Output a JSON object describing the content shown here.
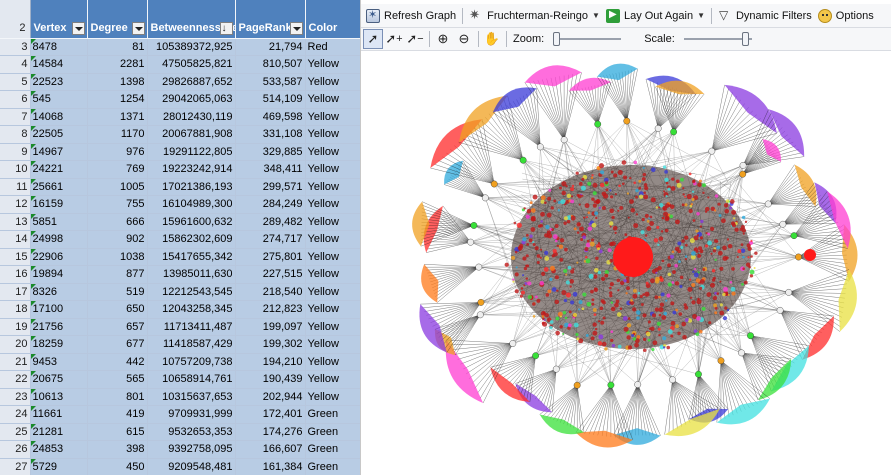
{
  "sheet": {
    "header_row_number": "2",
    "columns": [
      "Vertex",
      "Degree",
      "Betweenness Centrality",
      "PageRank",
      "Color"
    ],
    "rows": [
      {
        "row": "3",
        "vertex": "8478",
        "degree": "81",
        "betweenness": "105389372,925",
        "pagerank": "21,794",
        "color": "Red"
      },
      {
        "row": "4",
        "vertex": "14584",
        "degree": "2281",
        "betweenness": "47505825,821",
        "pagerank": "810,507",
        "color": "Yellow"
      },
      {
        "row": "5",
        "vertex": "22523",
        "degree": "1398",
        "betweenness": "29826887,652",
        "pagerank": "533,587",
        "color": "Yellow"
      },
      {
        "row": "6",
        "vertex": "545",
        "degree": "1254",
        "betweenness": "29042065,063",
        "pagerank": "514,109",
        "color": "Yellow"
      },
      {
        "row": "7",
        "vertex": "14068",
        "degree": "1371",
        "betweenness": "28012430,119",
        "pagerank": "469,598",
        "color": "Yellow"
      },
      {
        "row": "8",
        "vertex": "22505",
        "degree": "1170",
        "betweenness": "20067881,908",
        "pagerank": "331,108",
        "color": "Yellow"
      },
      {
        "row": "9",
        "vertex": "14967",
        "degree": "976",
        "betweenness": "19291122,805",
        "pagerank": "329,885",
        "color": "Yellow"
      },
      {
        "row": "10",
        "vertex": "24221",
        "degree": "769",
        "betweenness": "19223242,914",
        "pagerank": "348,411",
        "color": "Yellow"
      },
      {
        "row": "11",
        "vertex": "25661",
        "degree": "1005",
        "betweenness": "17021386,193",
        "pagerank": "299,571",
        "color": "Yellow"
      },
      {
        "row": "12",
        "vertex": "16159",
        "degree": "755",
        "betweenness": "16104989,300",
        "pagerank": "284,249",
        "color": "Yellow"
      },
      {
        "row": "13",
        "vertex": "5851",
        "degree": "666",
        "betweenness": "15961600,632",
        "pagerank": "289,482",
        "color": "Yellow"
      },
      {
        "row": "14",
        "vertex": "24998",
        "degree": "902",
        "betweenness": "15862302,609",
        "pagerank": "274,717",
        "color": "Yellow"
      },
      {
        "row": "15",
        "vertex": "22906",
        "degree": "1038",
        "betweenness": "15417655,342",
        "pagerank": "275,801",
        "color": "Yellow"
      },
      {
        "row": "16",
        "vertex": "19894",
        "degree": "877",
        "betweenness": "13985011,630",
        "pagerank": "227,515",
        "color": "Yellow"
      },
      {
        "row": "17",
        "vertex": "8326",
        "degree": "519",
        "betweenness": "12212543,545",
        "pagerank": "218,540",
        "color": "Yellow"
      },
      {
        "row": "18",
        "vertex": "17100",
        "degree": "650",
        "betweenness": "12043258,345",
        "pagerank": "212,823",
        "color": "Yellow"
      },
      {
        "row": "19",
        "vertex": "21756",
        "degree": "657",
        "betweenness": "11713411,487",
        "pagerank": "199,097",
        "color": "Yellow"
      },
      {
        "row": "20",
        "vertex": "18259",
        "degree": "677",
        "betweenness": "11418587,429",
        "pagerank": "199,302",
        "color": "Yellow"
      },
      {
        "row": "21",
        "vertex": "9453",
        "degree": "442",
        "betweenness": "10757209,738",
        "pagerank": "194,210",
        "color": "Yellow"
      },
      {
        "row": "22",
        "vertex": "20675",
        "degree": "565",
        "betweenness": "10658914,761",
        "pagerank": "190,439",
        "color": "Yellow"
      },
      {
        "row": "23",
        "vertex": "10613",
        "degree": "801",
        "betweenness": "10315637,653",
        "pagerank": "202,944",
        "color": "Yellow"
      },
      {
        "row": "24",
        "vertex": "11661",
        "degree": "419",
        "betweenness": "9709931,999",
        "pagerank": "172,401",
        "color": "Green"
      },
      {
        "row": "25",
        "vertex": "21281",
        "degree": "615",
        "betweenness": "9532653,353",
        "pagerank": "174,276",
        "color": "Green"
      },
      {
        "row": "26",
        "vertex": "24853",
        "degree": "398",
        "betweenness": "9392758,095",
        "pagerank": "166,607",
        "color": "Green"
      },
      {
        "row": "27",
        "vertex": "5729",
        "degree": "450",
        "betweenness": "9209548,481",
        "pagerank": "161,384",
        "color": "Green"
      }
    ]
  },
  "graph_toolbar": {
    "refresh_label": "Refresh Graph",
    "layout_label": "Fruchterman-Reingo",
    "layout_again_label": "Lay Out Again",
    "dynamic_filters_label": "Dynamic Filters",
    "options_label": "Options",
    "refresh_icon": "refresh-icon",
    "layout_icon": "layout-icon",
    "layout_again_icon": "play-icon",
    "filter_icon": "filter-icon",
    "options_icon": "options-icon"
  },
  "graph_toolbar2": {
    "zoom_label": "Zoom:",
    "scale_label": "Scale:",
    "zoom_level": 0.0,
    "scale_level": 0.95,
    "tools": [
      "select-pointer-icon",
      "add-vertex-pointer-icon",
      "remove-vertex-pointer-icon",
      "zoom-in-icon",
      "zoom-out-icon",
      "pan-hand-icon"
    ]
  },
  "graph_colors": {
    "cluster_palette": [
      "#ff2a2a",
      "#ff3cd2",
      "#f0a020",
      "#38e038",
      "#2eaadc",
      "#3a3ad8",
      "#e8e040",
      "#8a3ae0",
      "#ff7a1a",
      "#40e0e0"
    ],
    "hub_color": "#ff1a1a",
    "edge_color": "#000000"
  }
}
